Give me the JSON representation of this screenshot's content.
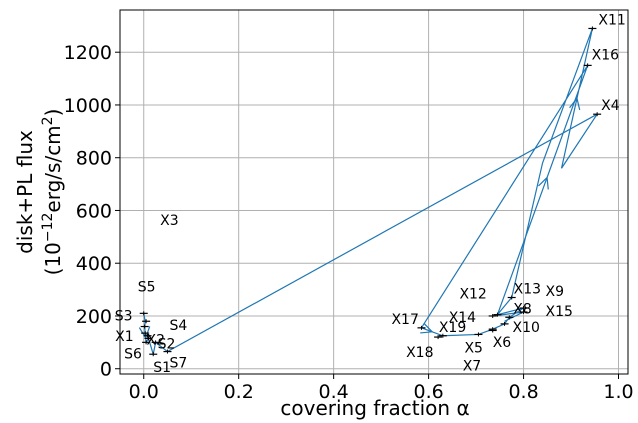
{
  "chart_data": {
    "type": "scatter",
    "xlabel": "covering fraction α",
    "ylabel_line1": "disk+PL flux",
    "ylabel_line2": "(10",
    "ylabel_exp1": "−12",
    "ylabel_mid": "erg/s/cm",
    "ylabel_exp2": "2",
    "ylabel_end": ")",
    "xlim": [
      -0.05,
      1.02
    ],
    "ylim": [
      -20,
      1360
    ],
    "grid": true,
    "xticks": [
      0.0,
      0.2,
      0.4,
      0.6,
      0.8,
      1.0
    ],
    "xtick_labels": [
      "0.0",
      "0.2",
      "0.4",
      "0.6",
      "0.8",
      "1.0"
    ],
    "yticks": [
      0,
      200,
      400,
      600,
      800,
      1000,
      1200
    ],
    "ytick_labels": [
      "0",
      "200",
      "400",
      "600",
      "800",
      "1000",
      "1200"
    ],
    "line_color": "#1f77b4",
    "marker_color": "#000000",
    "points": [
      {
        "label": "X1",
        "x": 0.003,
        "y": 135
      },
      {
        "label": "S1",
        "x": 0.02,
        "y": 55
      },
      {
        "label": "S2",
        "x": 0.025,
        "y": 100
      },
      {
        "label": "S3",
        "x": 0.002,
        "y": 160
      },
      {
        "label": "S4",
        "x": 0.008,
        "y": 125
      },
      {
        "label": "S5",
        "x": 0.0,
        "y": 210
      },
      {
        "label": "S6",
        "x": 0.005,
        "y": 100
      },
      {
        "label": "S7",
        "x": 0.05,
        "y": 65
      },
      {
        "label": "X2",
        "x": 0.01,
        "y": 115
      },
      {
        "label": "X3",
        "x": 0.005,
        "y": 180
      },
      {
        "label": "X4",
        "x": 0.955,
        "y": 965
      },
      {
        "label": "X5",
        "x": 0.705,
        "y": 130
      },
      {
        "label": "X6",
        "x": 0.735,
        "y": 150
      },
      {
        "label": "X7",
        "x": 0.735,
        "y": 145
      },
      {
        "label": "X8",
        "x": 0.77,
        "y": 195
      },
      {
        "label": "X9",
        "x": 0.8,
        "y": 230
      },
      {
        "label": "X10",
        "x": 0.76,
        "y": 170
      },
      {
        "label": "X11",
        "x": 0.945,
        "y": 1290
      },
      {
        "label": "X12",
        "x": 0.745,
        "y": 205
      },
      {
        "label": "X13",
        "x": 0.775,
        "y": 270
      },
      {
        "label": "X14",
        "x": 0.735,
        "y": 200
      },
      {
        "label": "X15",
        "x": 0.8,
        "y": 215
      },
      {
        "label": "X16",
        "x": 0.935,
        "y": 1150
      },
      {
        "label": "X17",
        "x": 0.585,
        "y": 155
      },
      {
        "label": "X18",
        "x": 0.62,
        "y": 120
      },
      {
        "label": "X19",
        "x": 0.63,
        "y": 125
      }
    ],
    "path": [
      [
        0.0,
        210
      ],
      [
        0.003,
        180
      ],
      [
        0.002,
        160
      ],
      [
        0.003,
        135
      ],
      [
        0.005,
        100
      ],
      [
        0.01,
        115
      ],
      [
        0.02,
        55
      ],
      [
        0.025,
        100
      ],
      [
        0.05,
        65
      ],
      [
        0.955,
        965
      ],
      [
        0.88,
        760
      ],
      [
        0.945,
        1290
      ],
      [
        0.84,
        780
      ],
      [
        0.775,
        270
      ],
      [
        0.745,
        205
      ],
      [
        0.935,
        1150
      ],
      [
        0.585,
        155
      ],
      [
        0.63,
        125
      ],
      [
        0.705,
        130
      ],
      [
        0.735,
        150
      ],
      [
        0.76,
        170
      ],
      [
        0.77,
        195
      ],
      [
        0.8,
        230
      ],
      [
        0.735,
        200
      ],
      [
        0.8,
        215
      ],
      [
        0.76,
        180
      ]
    ]
  }
}
